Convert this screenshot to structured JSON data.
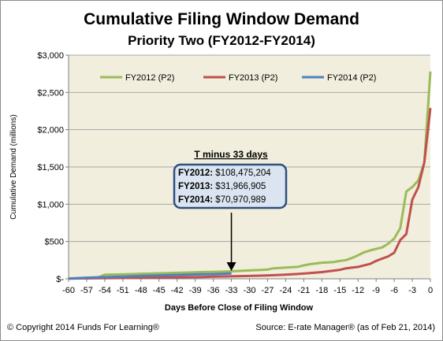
{
  "chart_data": {
    "type": "line",
    "title": "Cumulative Filing Window Demand",
    "subtitle": "Priority  Two (FY2012-FY2014)",
    "xlabel": "Days Before Close of Filing Window",
    "ylabel": "Cumulative Demand (millions)",
    "xlim": [
      -60,
      0
    ],
    "ylim": [
      0,
      3000
    ],
    "x_ticks": [
      -60,
      -57,
      -54,
      -51,
      -48,
      -45,
      -42,
      -39,
      -36,
      -33,
      -30,
      -27,
      -24,
      -21,
      -18,
      -15,
      -12,
      -9,
      -6,
      -3,
      0
    ],
    "y_ticks": [
      {
        "value": 0,
        "label": "$-"
      },
      {
        "value": 500,
        "label": "$500"
      },
      {
        "value": 1000,
        "label": "$1,000"
      },
      {
        "value": 1500,
        "label": "$1,500"
      },
      {
        "value": 2000,
        "label": "$2,000"
      },
      {
        "value": 2500,
        "label": "$2,500"
      },
      {
        "value": 3000,
        "label": "$3,000"
      }
    ],
    "grid": true,
    "legend_position": "top",
    "series": [
      {
        "name": "FY2012 (P2)",
        "color": "#9bbb59",
        "points": [
          [
            -60,
            5
          ],
          [
            -57,
            10
          ],
          [
            -56,
            15
          ],
          [
            -55,
            20
          ],
          [
            -54,
            55
          ],
          [
            -52,
            58
          ],
          [
            -50,
            62
          ],
          [
            -48,
            68
          ],
          [
            -46,
            72
          ],
          [
            -44,
            75
          ],
          [
            -42,
            80
          ],
          [
            -40,
            84
          ],
          [
            -38,
            90
          ],
          [
            -36,
            93
          ],
          [
            -34,
            98
          ],
          [
            -32,
            105
          ],
          [
            -30,
            112
          ],
          [
            -28,
            118
          ],
          [
            -27,
            125
          ],
          [
            -26,
            140
          ],
          [
            -24,
            150
          ],
          [
            -22,
            160
          ],
          [
            -21,
            180
          ],
          [
            -20,
            195
          ],
          [
            -18,
            215
          ],
          [
            -16,
            225
          ],
          [
            -15,
            240
          ],
          [
            -14,
            250
          ],
          [
            -13,
            280
          ],
          [
            -12,
            315
          ],
          [
            -11,
            355
          ],
          [
            -10,
            380
          ],
          [
            -9,
            400
          ],
          [
            -8,
            420
          ],
          [
            -7,
            470
          ],
          [
            -6,
            540
          ],
          [
            -5,
            680
          ],
          [
            -4,
            1170
          ],
          [
            -3,
            1230
          ],
          [
            -2,
            1320
          ],
          [
            -1,
            1560
          ],
          [
            0,
            2780
          ]
        ]
      },
      {
        "name": "FY2013 (P2)",
        "color": "#c0504d",
        "points": [
          [
            -60,
            2
          ],
          [
            -54,
            8
          ],
          [
            -48,
            14
          ],
          [
            -42,
            20
          ],
          [
            -38,
            24
          ],
          [
            -36,
            28
          ],
          [
            -34,
            32
          ],
          [
            -30,
            38
          ],
          [
            -27,
            45
          ],
          [
            -24,
            55
          ],
          [
            -21,
            70
          ],
          [
            -18,
            90
          ],
          [
            -15,
            120
          ],
          [
            -14,
            140
          ],
          [
            -12,
            160
          ],
          [
            -10,
            200
          ],
          [
            -9,
            240
          ],
          [
            -8,
            270
          ],
          [
            -7,
            300
          ],
          [
            -6,
            350
          ],
          [
            -5,
            520
          ],
          [
            -4,
            600
          ],
          [
            -3,
            1060
          ],
          [
            -2,
            1230
          ],
          [
            -1,
            1560
          ],
          [
            0,
            2290
          ]
        ]
      },
      {
        "name": "FY2014 (P2)",
        "color": "#4f81bd",
        "points": [
          [
            -60,
            3
          ],
          [
            -57,
            15
          ],
          [
            -54,
            22
          ],
          [
            -51,
            30
          ],
          [
            -48,
            38
          ],
          [
            -45,
            45
          ],
          [
            -42,
            52
          ],
          [
            -39,
            58
          ],
          [
            -36,
            62
          ],
          [
            -33,
            71
          ]
        ]
      }
    ],
    "annotation": {
      "heading": "T minus 33 days",
      "lines": [
        {
          "label": "FY2012:",
          "value": " $108,475,204"
        },
        {
          "label": "FY2013:",
          "value": " $31,966,905"
        },
        {
          "label": "FY2014:",
          "value": " $70,970,989"
        }
      ],
      "arrow_target": [
        -33,
        0
      ]
    }
  },
  "footer": {
    "left": "© Copyright  2014 Funds For Learning®",
    "right": "Source:  E-rate  Manager®  (as of Feb 21, 2014)"
  }
}
